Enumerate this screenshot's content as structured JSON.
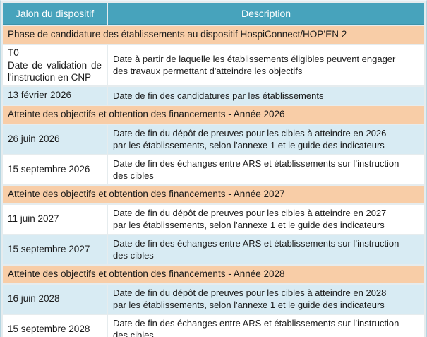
{
  "table": {
    "columns": [
      "Jalon du dispositif",
      "Description"
    ],
    "colors": {
      "header_bg": "#47a3bc",
      "header_text": "#ffffff",
      "section_bg": "#f8cda7",
      "alt_row_bg": "#d8ebf3",
      "row_bg": "#ffffff",
      "grid": "#e6ecee",
      "outer_border": "#b5d6e2",
      "text": "#1a1a1a"
    },
    "sections": [
      {
        "title": "Phase de candidature des établissements au dispositif HospiConnect/HOP’EN 2",
        "rows": [
          {
            "milestone": "T0\nDate de validation de l'instruction en CNP",
            "description": "Date à partir de laquelle les établissements éligibles peuvent engager\ndes travaux permettant d'atteindre les objectifs",
            "shade": "white"
          },
          {
            "milestone": "13 février 2026",
            "description": "Date de fin des candidatures par les établissements",
            "shade": "blue"
          }
        ]
      },
      {
        "title": "Atteinte des objectifs et obtention des financements - Année 2026",
        "rows": [
          {
            "milestone": "26 juin 2026",
            "description": "Date de fin du dépôt de preuves pour les cibles à atteindre en 2026\npar les établissements, selon l'annexe 1 et le guide des indicateurs",
            "shade": "blue"
          },
          {
            "milestone": "15 septembre 2026",
            "description": "Date de fin des échanges entre ARS et établissements sur l’instruction\ndes cibles",
            "shade": "white"
          }
        ]
      },
      {
        "title": "Atteinte des objectifs et obtention des financements - Année 2027",
        "rows": [
          {
            "milestone": "11 juin 2027",
            "description": "Date de fin du dépôt de preuves pour les cibles à atteindre en 2027\npar les établissements, selon l'annexe 1 et le guide des indicateurs",
            "shade": "white"
          },
          {
            "milestone": "15 septembre 2027",
            "description": "Date de fin des échanges entre ARS et établissements sur l’instruction\ndes cibles",
            "shade": "blue"
          }
        ]
      },
      {
        "title": "Atteinte des objectifs et obtention des financements - Année 2028",
        "rows": [
          {
            "milestone": "16 juin 2028",
            "description": "Date de fin du dépôt de preuves pour les cibles à atteindre en 2028\npar les établissements, selon l'annexe 1 et le guide des indicateurs",
            "shade": "blue"
          },
          {
            "milestone": "15 septembre 2028",
            "description": "Date de fin des échanges entre ARS et établissements sur l’instruction\ndes cibles",
            "shade": "white"
          }
        ]
      }
    ]
  }
}
